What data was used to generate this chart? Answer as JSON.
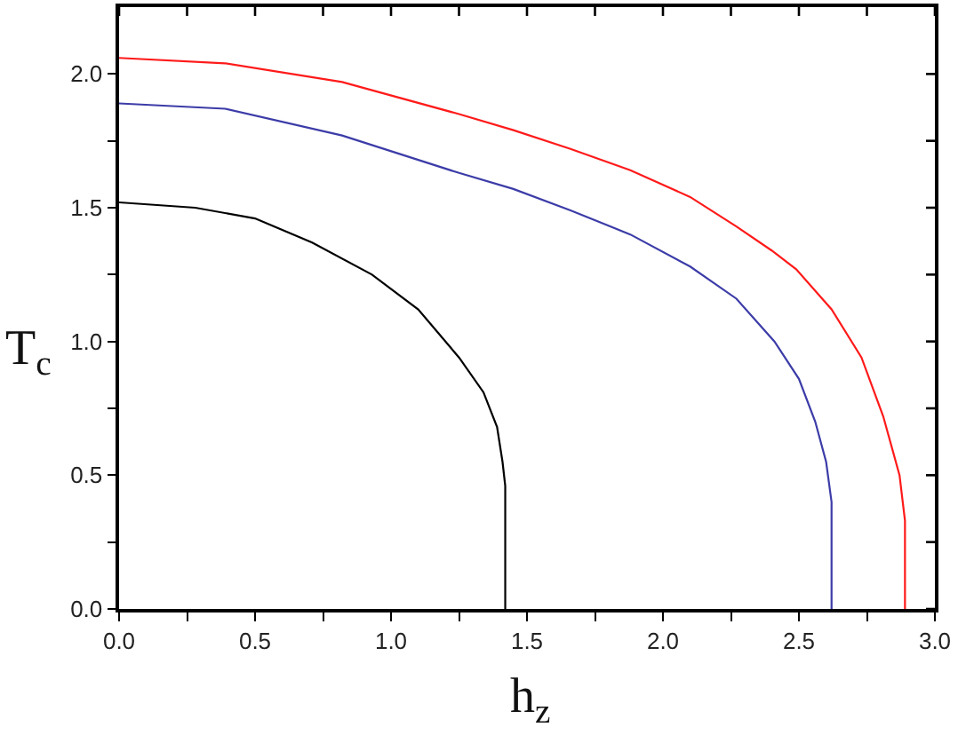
{
  "chart_data": {
    "type": "line",
    "xlabel": "h$_{z}$",
    "ylabel": "T$_{c}$",
    "line_style": "solid",
    "xlim": [
      0,
      3.0
    ],
    "ylim": [
      0,
      2.25
    ],
    "xticks": [
      {
        "value": 0,
        "label": "0.0"
      },
      {
        "value": 0.25,
        "label": null
      },
      {
        "value": 0.5,
        "label": "0.5"
      },
      {
        "value": 0.75,
        "label": null
      },
      {
        "value": 1,
        "label": "1.0"
      },
      {
        "value": 1.25,
        "label": null
      },
      {
        "value": 1.5,
        "label": "1.5"
      },
      {
        "value": 1.75,
        "label": null
      },
      {
        "value": 2,
        "label": "2.0"
      },
      {
        "value": 2.25,
        "label": null
      },
      {
        "value": 2.5,
        "label": "2.5"
      },
      {
        "value": 2.75,
        "label": null
      },
      {
        "value": 3,
        "label": "3.0"
      }
    ],
    "yticks": [
      {
        "value": 0,
        "label": "0.0"
      },
      {
        "value": 0.25,
        "label": null
      },
      {
        "value": 0.5,
        "label": "0.5"
      },
      {
        "value": 0.75,
        "label": null
      },
      {
        "value": 1,
        "label": "1.0"
      },
      {
        "value": 1.25,
        "label": null
      },
      {
        "value": 1.5,
        "label": "1.5"
      },
      {
        "value": 1.75,
        "label": null
      },
      {
        "value": 2,
        "label": "2.0"
      }
    ],
    "series": [
      {
        "color": "#000000",
        "x": [
          0,
          0.28,
          0.5,
          0.71,
          0.93,
          1.1,
          1.25,
          1.34,
          1.39,
          1.41,
          1.42,
          1.42
        ],
        "values": [
          1.52,
          1.5,
          1.46,
          1.37,
          1.25,
          1.12,
          0.94,
          0.81,
          0.68,
          0.55,
          0.46,
          0
        ]
      },
      {
        "color": "#3c3ca8",
        "x": [
          0,
          0.39,
          0.82,
          1.25,
          1.45,
          1.66,
          1.88,
          2.1,
          2.27,
          2.41,
          2.5,
          2.56,
          2.6,
          2.62,
          2.62
        ],
        "values": [
          1.89,
          1.87,
          1.77,
          1.63,
          1.57,
          1.49,
          1.4,
          1.28,
          1.16,
          1.0,
          0.86,
          0.7,
          0.55,
          0.4,
          0
        ]
      },
      {
        "color": "#ff1a1a",
        "x": [
          0,
          0.39,
          0.82,
          1.25,
          1.45,
          1.66,
          1.88,
          2.1,
          2.27,
          2.4,
          2.49,
          2.62,
          2.73,
          2.81,
          2.87,
          2.89,
          2.89
        ],
        "values": [
          2.06,
          2.04,
          1.97,
          1.85,
          1.79,
          1.72,
          1.64,
          1.54,
          1.43,
          1.34,
          1.27,
          1.12,
          0.94,
          0.72,
          0.5,
          0.33,
          0
        ]
      }
    ]
  }
}
